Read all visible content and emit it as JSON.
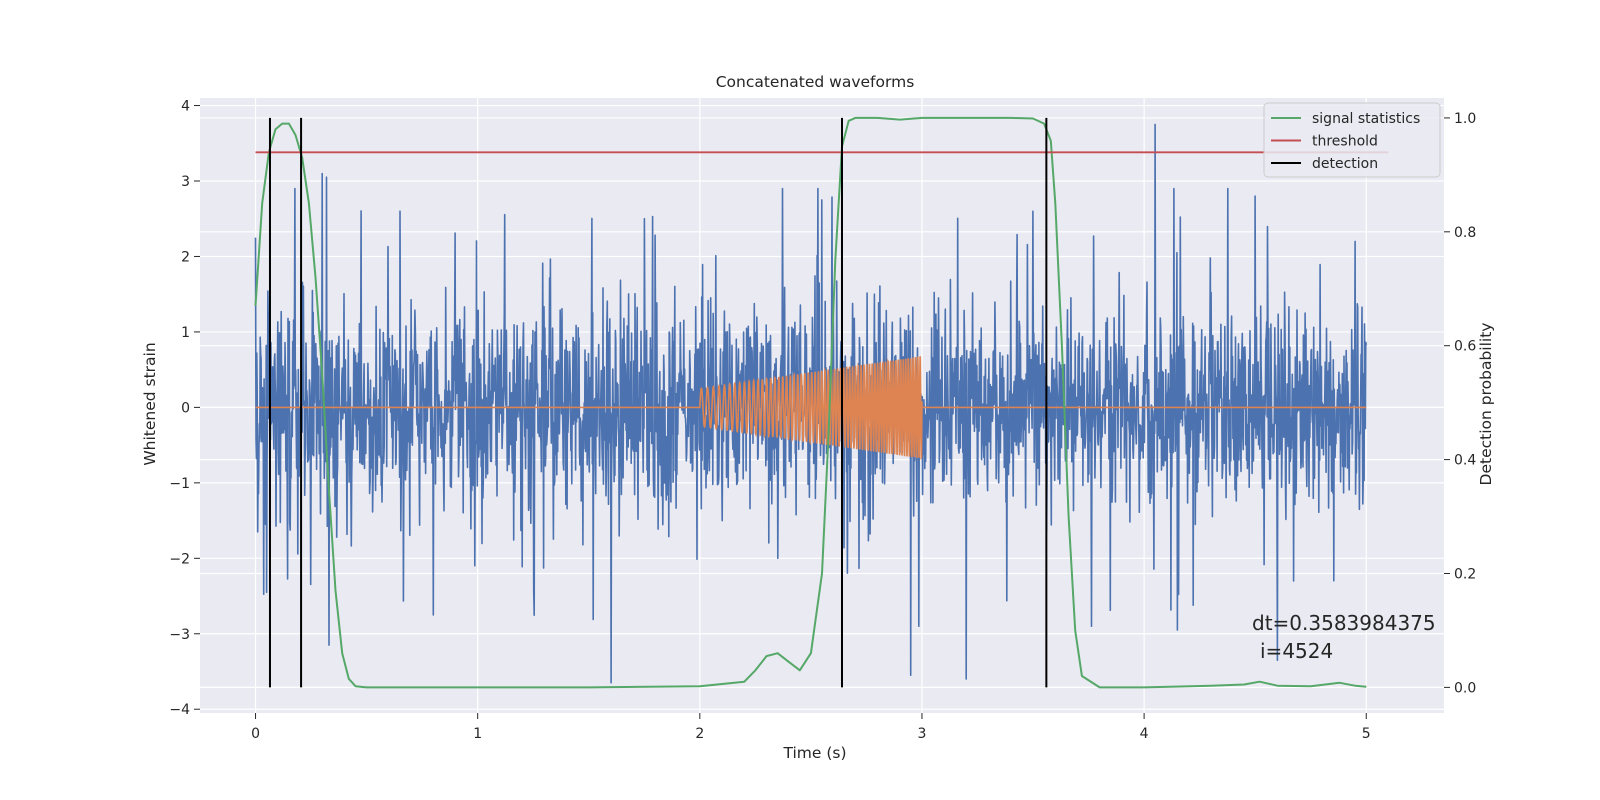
{
  "chart_data": {
    "type": "line",
    "title": "Concatenated waveforms",
    "xlabel": "Time (s)",
    "ylabel": "Whitened strain",
    "y2label": "Detection probability",
    "xlim": [
      -0.25,
      5.35
    ],
    "ylim": [
      -4.05,
      4.1
    ],
    "y2lim": [
      -0.045,
      1.035
    ],
    "x_ticks": [
      "0",
      "1",
      "2",
      "3",
      "4",
      "5"
    ],
    "y_ticks": [
      "−4",
      "−3",
      "−2",
      "−1",
      "0",
      "1",
      "2",
      "3",
      "4"
    ],
    "y2_ticks": [
      "0.0",
      "0.2",
      "0.4",
      "0.6",
      "0.8",
      "1.0"
    ],
    "grid": true,
    "legend_position": "top-right",
    "colors": {
      "background": "#eaeaf2",
      "grid": "#ffffff",
      "strain": "#4c72b0",
      "injection": "#dd8452",
      "signal_statistics": "#55a868",
      "threshold": "#c44e52",
      "detection": "#000000"
    },
    "series": [
      {
        "name": "",
        "axis": "left",
        "description_kind": "whitened-strain-noise",
        "x_range": [
          0,
          5
        ],
        "typical_amplitude": 0.65,
        "sample_peaks": [
          [
            0.0,
            2.25
          ],
          [
            0.01,
            -1.65
          ],
          [
            0.05,
            -2.45
          ],
          [
            0.3,
            3.1
          ],
          [
            0.33,
            -3.15
          ],
          [
            0.32,
            3.05
          ],
          [
            0.65,
            2.6
          ],
          [
            0.8,
            -2.75
          ],
          [
            1.6,
            -3.65
          ],
          [
            1.75,
            2.5
          ],
          [
            2.55,
            2.75
          ],
          [
            2.95,
            -3.55
          ],
          [
            3.2,
            -3.6
          ],
          [
            3.5,
            2.6
          ],
          [
            4.05,
            3.75
          ],
          [
            4.15,
            -2.95
          ],
          [
            4.5,
            2.8
          ],
          [
            4.6,
            -3.35
          ],
          [
            4.95,
            2.2
          ],
          [
            4.97,
            -1.35
          ]
        ]
      },
      {
        "name": "",
        "axis": "left",
        "description_kind": "injected-chirp",
        "x": [
          0,
          2,
          3,
          5
        ],
        "amplitude": [
          0,
          0.25,
          0.68,
          0
        ],
        "frequency_start_hz": 35,
        "frequency_end_hz": 95
      },
      {
        "name": "signal statistics",
        "axis": "right",
        "x": [
          0.0,
          0.03,
          0.06,
          0.09,
          0.12,
          0.15,
          0.18,
          0.21,
          0.24,
          0.27,
          0.3,
          0.33,
          0.36,
          0.39,
          0.42,
          0.45,
          0.5,
          1.0,
          1.5,
          2.0,
          2.2,
          2.25,
          2.3,
          2.35,
          2.4,
          2.45,
          2.5,
          2.55,
          2.58,
          2.61,
          2.64,
          2.67,
          2.7,
          2.8,
          2.9,
          3.0,
          3.2,
          3.4,
          3.5,
          3.55,
          3.58,
          3.6,
          3.63,
          3.66,
          3.69,
          3.72,
          3.8,
          4.0,
          4.3,
          4.45,
          4.52,
          4.6,
          4.75,
          4.88,
          4.95,
          5.0
        ],
        "y": [
          0.67,
          0.85,
          0.94,
          0.98,
          0.99,
          0.99,
          0.97,
          0.93,
          0.85,
          0.72,
          0.55,
          0.35,
          0.17,
          0.06,
          0.015,
          0.002,
          0.0,
          0.0,
          0.0,
          0.002,
          0.01,
          0.03,
          0.055,
          0.06,
          0.045,
          0.03,
          0.06,
          0.2,
          0.45,
          0.75,
          0.95,
          0.995,
          1.0,
          1.0,
          0.997,
          1.0,
          1.0,
          1.0,
          0.999,
          0.99,
          0.96,
          0.85,
          0.6,
          0.3,
          0.1,
          0.02,
          0.0,
          0.0,
          0.003,
          0.005,
          0.01,
          0.003,
          0.002,
          0.008,
          0.003,
          0.001
        ]
      },
      {
        "name": "threshold",
        "axis": "left",
        "x": [
          0,
          5.1
        ],
        "y": [
          3.38,
          3.38
        ]
      },
      {
        "name": "detection",
        "axis": "right",
        "kind": "vertical-lines",
        "x": [
          0.065,
          0.205,
          2.64,
          3.56
        ],
        "y_range": [
          0,
          1.0
        ]
      }
    ],
    "annotations": [
      "dt=0.3583984375",
      "i=4524"
    ]
  }
}
